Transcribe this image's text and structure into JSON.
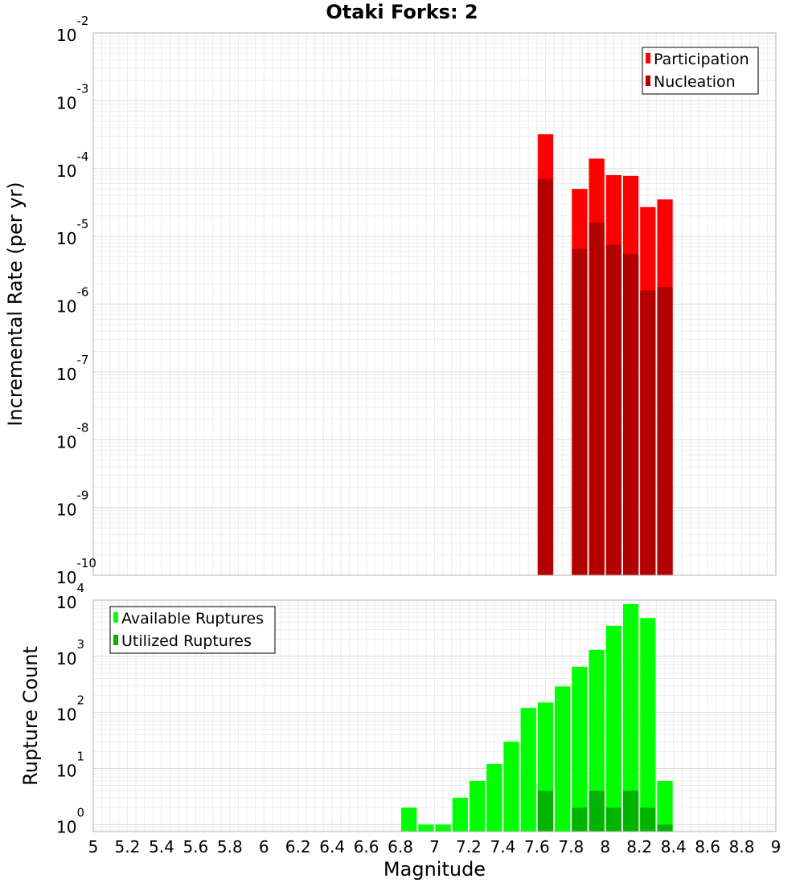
{
  "chart_data": [
    {
      "type": "bar",
      "title": "Otaki Forks: 2",
      "ylabel": "Incremental Rate (per yr)",
      "xlabel": "",
      "yscale": "log",
      "ylim": [
        1e-10,
        0.01
      ],
      "xlim": [
        5,
        9
      ],
      "grid": true,
      "legend_position": "top-right",
      "bin_width": 0.1,
      "series": [
        {
          "name": "Participation",
          "color": "#ff0000",
          "x": [
            7.65,
            7.85,
            7.95,
            8.05,
            8.15,
            8.25,
            8.35
          ],
          "values": [
            0.00032,
            5e-05,
            0.00014,
            8e-05,
            7.8e-05,
            2.7e-05,
            3.5e-05
          ]
        },
        {
          "name": "Nucleation",
          "color": "#b30000",
          "x": [
            7.65,
            7.85,
            7.95,
            8.05,
            8.15,
            8.25,
            8.35
          ],
          "values": [
            7e-05,
            6.5e-06,
            1.6e-05,
            7.5e-06,
            5.5e-06,
            1.6e-06,
            1.8e-06
          ]
        }
      ]
    },
    {
      "type": "bar",
      "title": "",
      "ylabel": "Rupture Count",
      "xlabel": "Magnitude",
      "yscale": "log",
      "ylim": [
        0.75,
        10000
      ],
      "xlim": [
        5,
        9
      ],
      "grid": true,
      "legend_position": "top-left",
      "bin_width": 0.1,
      "series": [
        {
          "name": "Available Ruptures",
          "color": "#00ff00",
          "x": [
            6.85,
            6.95,
            7.05,
            7.15,
            7.25,
            7.35,
            7.45,
            7.55,
            7.65,
            7.75,
            7.85,
            7.95,
            8.05,
            8.15,
            8.25,
            8.35
          ],
          "values": [
            2,
            1,
            1,
            3,
            6,
            12,
            30,
            120,
            150,
            290,
            650,
            1300,
            3500,
            8500,
            4800,
            6
          ]
        },
        {
          "name": "Utilized Ruptures",
          "color": "#00b300",
          "x": [
            7.65,
            7.85,
            7.95,
            8.05,
            8.15,
            8.25,
            8.35
          ],
          "values": [
            4,
            2,
            4,
            2,
            4,
            2,
            1
          ]
        }
      ]
    }
  ]
}
